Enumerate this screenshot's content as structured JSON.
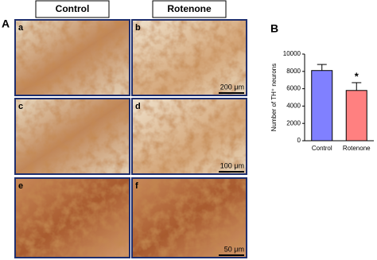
{
  "figure": {
    "label_a": "A",
    "label_b": "B",
    "columns": [
      "Control",
      "Rotenone"
    ],
    "panels": [
      {
        "letter": "a",
        "scale": null
      },
      {
        "letter": "b",
        "scale": "200 μm"
      },
      {
        "letter": "c",
        "scale": null
      },
      {
        "letter": "d",
        "scale": "100 μm"
      },
      {
        "letter": "e",
        "scale": null
      },
      {
        "letter": "f",
        "scale": "50 μm"
      }
    ]
  },
  "chart_data": {
    "type": "bar",
    "y_label": "Number of TH⁺ neurons",
    "categories": [
      "Control",
      "Rotenone"
    ],
    "values": [
      8100,
      5800
    ],
    "errors": [
      700,
      900
    ],
    "colors": [
      "#8080ff",
      "#ff8080"
    ],
    "annotation": "*",
    "annotation_index": 1,
    "ylim": [
      0,
      10000
    ],
    "yticks": [
      0,
      2000,
      4000,
      6000,
      8000,
      10000
    ]
  }
}
